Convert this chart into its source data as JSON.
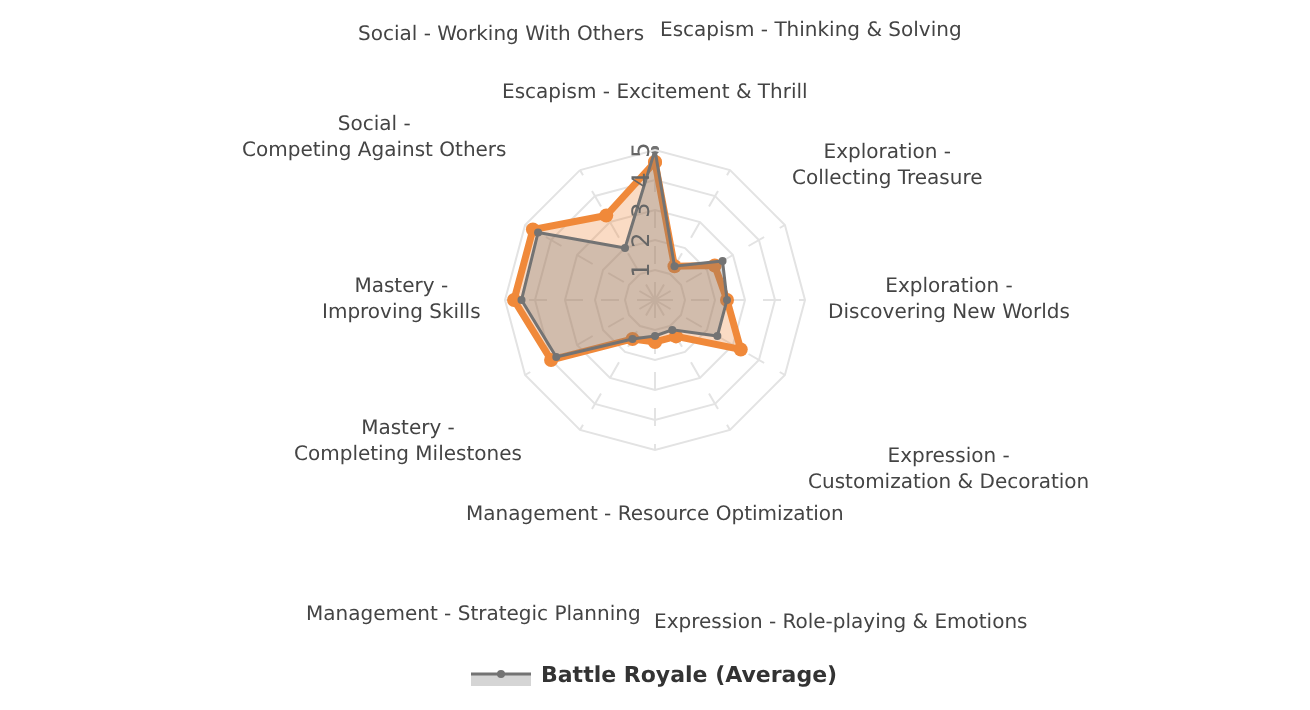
{
  "chart_data": {
    "type": "radar",
    "categories": [
      "Escapism - Excitement & Thrill",
      "Escapism - Thinking & Solving",
      "Exploration - Collecting Treasure",
      "Exploration - Discovering New Worlds",
      "Expression - Customization & Decoration",
      "Expression - Role-playing & Emotions",
      "Management - Resource Optimization",
      "Management - Strategic Planning",
      "Mastery - Completing Milestones",
      "Mastery - Improving Skills",
      "Social - Competing Against Others",
      "Social - Working With Others"
    ],
    "series": [
      {
        "color": "#f0893a",
        "values": [
          4.6,
          1.3,
          2.3,
          2.4,
          3.3,
          1.4,
          1.4,
          1.5,
          4.0,
          4.7,
          4.7,
          3.25
        ]
      },
      {
        "name": "Battle Royale (Average)",
        "color": "#737373",
        "values": [
          5.0,
          1.3,
          2.6,
          2.4,
          2.4,
          1.15,
          1.2,
          1.5,
          3.8,
          4.45,
          4.5,
          2.0
        ]
      }
    ],
    "ylim": [
      0,
      5
    ],
    "yticks": [
      1,
      2,
      3,
      4,
      5
    ],
    "grid": true,
    "legend": "bottom",
    "marker": "circle"
  }
}
